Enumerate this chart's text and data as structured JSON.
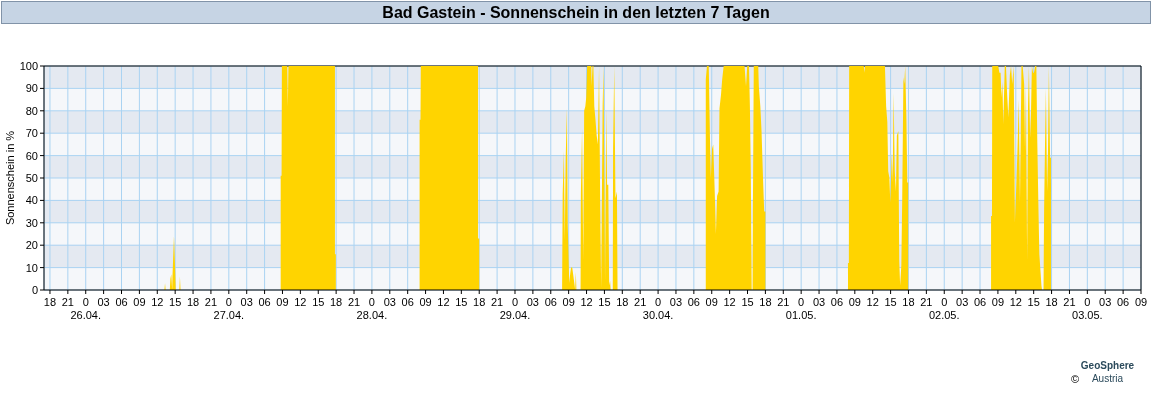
{
  "chart_data": {
    "type": "area",
    "title": "Bad Gastein - Sonnenschein in den letzten 7 Tagen",
    "ylabel": "Sonnenschein in %",
    "annotations": [
      "©",
      "GeoSphere Austria"
    ],
    "color": "#ffd400",
    "x": [
      "--04-26T13:12",
      "--04-26T13:18",
      "--04-26T13:24",
      "--04-26T14:06",
      "--04-26T14:12",
      "--04-26T14:21",
      "--04-26T14:30",
      "--04-26T14:33",
      "--04-26T14:48",
      "--04-26T15:00",
      "--04-26T15:06",
      "--04-26T15:42",
      "--04-26T15:48",
      "--04-26T15:54",
      "--04-27T08:42",
      "--04-27T08:42",
      "--04-27T08:51",
      "--04-27T08:54",
      "--04-27T09:48",
      "--04-27T09:54",
      "--04-27T10:00",
      "--04-27T17:48",
      "--04-27T17:48",
      "--04-27T17:57",
      "--04-27T17:57",
      "--04-28T08:00",
      "--04-28T08:00",
      "--04-28T08:09",
      "--04-28T08:12",
      "--04-28T17:48",
      "--04-28T17:48",
      "--04-28T18:00",
      "--04-28T18:00",
      "--04-29T07:54",
      "--04-29T08:00",
      "--04-29T08:12",
      "--04-29T08:21",
      "--04-29T08:30",
      "--04-29T08:42",
      "--04-29T08:51",
      "--04-29T09:06",
      "--04-29T09:15",
      "--04-29T09:24",
      "--04-29T09:36",
      "--04-29T09:45",
      "--04-29T10:00",
      "--04-29T10:06",
      "--04-29T10:12",
      "--04-29T10:18",
      "--04-29T11:00",
      "--04-29T11:03",
      "--04-29T11:15",
      "--04-29T11:27",
      "--04-29T11:36",
      "--04-29T11:48",
      "--04-29T11:57",
      "--04-29T12:06",
      "--04-29T12:48",
      "--04-29T12:51",
      "--04-29T13:00",
      "--04-29T13:09",
      "--04-29T13:18",
      "--04-29T13:30",
      "--04-29T13:42",
      "--04-29T13:54",
      "--04-29T14:06",
      "--04-29T14:18",
      "--04-29T14:27",
      "--04-29T14:42",
      "--04-29T14:51",
      "--04-29T15:06",
      "--04-29T15:18",
      "--04-29T15:27",
      "--04-29T15:39",
      "--04-29T15:48",
      "--04-29T15:57",
      "--04-29T16:03",
      "--04-29T16:24",
      "--04-29T16:27",
      "--04-29T16:39",
      "--04-29T16:51",
      "--04-29T17:06",
      "--04-29T17:12",
      "--04-30T08:00",
      "--04-30T08:00",
      "--04-30T08:12",
      "--04-30T08:30",
      "--04-30T08:42",
      "--04-30T08:51",
      "--04-30T09:03",
      "--04-30T09:15",
      "--04-30T09:30",
      "--04-30T09:42",
      "--04-30T09:54",
      "--04-30T10:09",
      "--04-30T10:18",
      "--04-30T10:33",
      "--04-30T10:45",
      "--04-30T11:00",
      "--04-30T14:30",
      "--04-30T14:45",
      "--04-30T14:57",
      "--04-30T15:15",
      "--04-30T15:24",
      "--04-30T15:33",
      "--04-30T15:42",
      "--04-30T15:51",
      "--04-30T15:54",
      "--04-30T16:03",
      "--04-30T16:48",
      "--04-30T16:54",
      "--04-30T17:09",
      "--04-30T17:21",
      "--04-30T17:36",
      "--04-30T17:48",
      "--04-30T18:00",
      "--04-30T18:00",
      "--05-01T07:51",
      "--05-01T07:51",
      "--05-01T08:00",
      "--05-01T08:03",
      "--05-01T10:30",
      "--05-01T10:36",
      "--05-01T10:42",
      "--05-01T14:03",
      "--05-01T14:15",
      "--05-01T14:27",
      "--05-01T14:36",
      "--05-01T14:48",
      "--05-01T14:57",
      "--05-01T15:12",
      "--05-01T15:21",
      "--05-01T15:30",
      "--05-01T15:42",
      "--05-01T15:54",
      "--05-01T16:03",
      "--05-01T16:18",
      "--05-01T16:27",
      "--05-01T16:36",
      "--05-01T16:48",
      "--05-01T16:57",
      "--05-01T17:09",
      "--05-01T17:18",
      "--05-01T17:27",
      "--05-01T17:39",
      "--05-01T17:48",
      "--05-01T17:57",
      "--05-01T17:57",
      "--05-02T07:51",
      "--05-02T07:51",
      "--05-02T08:00",
      "--05-02T08:03",
      "--05-02T09:03",
      "--05-02T09:15",
      "--05-02T09:27",
      "--05-02T09:36",
      "--05-02T09:45",
      "--05-02T09:54",
      "--05-02T10:09",
      "--05-02T10:21",
      "--05-02T10:33",
      "--05-02T10:45",
      "--05-02T11:00",
      "--05-02T11:12",
      "--05-02T11:24",
      "--05-02T11:39",
      "--05-02T11:51",
      "--05-02T12:03",
      "--05-02T12:15",
      "--05-02T12:30",
      "--05-02T12:42",
      "--05-02T12:57",
      "--05-02T13:09",
      "--05-02T13:24",
      "--05-02T13:33",
      "--05-02T13:42",
      "--05-02T13:54",
      "--05-02T14:03",
      "--05-02T14:12",
      "--05-02T14:24",
      "--05-02T14:33",
      "--05-02T14:42",
      "--05-02T14:54",
      "--05-02T15:03",
      "--05-02T15:15",
      "--05-02T15:27",
      "--05-02T15:36",
      "--05-02T15:48",
      "--05-02T15:57",
      "--05-02T16:06",
      "--05-02T16:18",
      "--05-02T16:24",
      "--05-02T16:39",
      "--05-02T16:45",
      "--05-02T16:54",
      "--05-02T17:03",
      "--05-02T17:15",
      "--05-02T17:24",
      "--05-02T17:33",
      "--05-02T17:45",
      "--05-02T17:54",
      "--05-02T17:54"
    ],
    "values": [
      0,
      3,
      0,
      0,
      5,
      7,
      0,
      6,
      24,
      9,
      0,
      0,
      6,
      0,
      0,
      51,
      51,
      100,
      100,
      82,
      100,
      100,
      16,
      16,
      0,
      0,
      76,
      76,
      100,
      100,
      23,
      23,
      0,
      0,
      43,
      62,
      22,
      58,
      81,
      29,
      3,
      7,
      10,
      10,
      7,
      2,
      0,
      8,
      0,
      0,
      43,
      72,
      13,
      80,
      82,
      86,
      100,
      100,
      91,
      100,
      100,
      82,
      76,
      69,
      65,
      100,
      36,
      1,
      82,
      100,
      4,
      81,
      47,
      47,
      2,
      4,
      0,
      0,
      63,
      100,
      41,
      44,
      0,
      0,
      94,
      100,
      100,
      68,
      50,
      63,
      65,
      44,
      25,
      42,
      44,
      81,
      87,
      94,
      100,
      100,
      91,
      100,
      100,
      82,
      53,
      0,
      0,
      34,
      100,
      100,
      91,
      82,
      71,
      50,
      35,
      35,
      0,
      0,
      12,
      12,
      100,
      100,
      97,
      100,
      100,
      82,
      75,
      53,
      50,
      39,
      61,
      48,
      88,
      53,
      44,
      69,
      71,
      13,
      2,
      11,
      41,
      95,
      92,
      100,
      76,
      48,
      48,
      0,
      0,
      33,
      33,
      100,
      100,
      97,
      97,
      86,
      93,
      74,
      100,
      100,
      87,
      77,
      96,
      100,
      92,
      100,
      30,
      44,
      60,
      85,
      39,
      100,
      100,
      92,
      62,
      92,
      13,
      82,
      100,
      68,
      79,
      100,
      97,
      97,
      100,
      100,
      67,
      36,
      16,
      10,
      2,
      0,
      0,
      36,
      65,
      90,
      44,
      62,
      100,
      59,
      59,
      0
    ],
    "xlim": [
      "--04-25T17:00",
      "--05-03T09:00"
    ],
    "xticks": [
      {
        "value": "--04-25T18:00",
        "label": "18"
      },
      {
        "value": "--04-25T21:00",
        "label": "21"
      },
      {
        "value": "--04-26T00:00",
        "label": "0\n26.04."
      },
      {
        "value": "--04-26T03:00",
        "label": "03"
      },
      {
        "value": "--04-26T06:00",
        "label": "06"
      },
      {
        "value": "--04-26T09:00",
        "label": "09"
      },
      {
        "value": "--04-26T12:00",
        "label": "12"
      },
      {
        "value": "--04-26T15:00",
        "label": "15"
      },
      {
        "value": "--04-26T18:00",
        "label": "18"
      },
      {
        "value": "--04-26T21:00",
        "label": "21"
      },
      {
        "value": "--04-27T00:00",
        "label": "0\n27.04."
      },
      {
        "value": "--04-27T03:00",
        "label": "03"
      },
      {
        "value": "--04-27T06:00",
        "label": "06"
      },
      {
        "value": "--04-27T09:00",
        "label": "09"
      },
      {
        "value": "--04-27T12:00",
        "label": "12"
      },
      {
        "value": "--04-27T15:00",
        "label": "15"
      },
      {
        "value": "--04-27T18:00",
        "label": "18"
      },
      {
        "value": "--04-27T21:00",
        "label": "21"
      },
      {
        "value": "--04-28T00:00",
        "label": "0\n28.04."
      },
      {
        "value": "--04-28T03:00",
        "label": "03"
      },
      {
        "value": "--04-28T06:00",
        "label": "06"
      },
      {
        "value": "--04-28T09:00",
        "label": "09"
      },
      {
        "value": "--04-28T12:00",
        "label": "12"
      },
      {
        "value": "--04-28T15:00",
        "label": "15"
      },
      {
        "value": "--04-28T18:00",
        "label": "18"
      },
      {
        "value": "--04-28T21:00",
        "label": "21"
      },
      {
        "value": "--04-29T00:00",
        "label": "0\n29.04."
      },
      {
        "value": "--04-29T03:00",
        "label": "03"
      },
      {
        "value": "--04-29T06:00",
        "label": "06"
      },
      {
        "value": "--04-29T09:00",
        "label": "09"
      },
      {
        "value": "--04-29T12:00",
        "label": "12"
      },
      {
        "value": "--04-29T15:00",
        "label": "15"
      },
      {
        "value": "--04-29T18:00",
        "label": "18"
      },
      {
        "value": "--04-29T21:00",
        "label": "21"
      },
      {
        "value": "--04-30T00:00",
        "label": "0\n30.04."
      },
      {
        "value": "--04-30T03:00",
        "label": "03"
      },
      {
        "value": "--04-30T06:00",
        "label": "06"
      },
      {
        "value": "--04-30T09:00",
        "label": "09"
      },
      {
        "value": "--04-30T12:00",
        "label": "12"
      },
      {
        "value": "--04-30T15:00",
        "label": "15"
      },
      {
        "value": "--04-30T18:00",
        "label": "18"
      },
      {
        "value": "--04-30T21:00",
        "label": "21"
      },
      {
        "value": "--05-01T00:00",
        "label": "0\n01.05."
      },
      {
        "value": "--05-01T03:00",
        "label": "03"
      },
      {
        "value": "--05-01T06:00",
        "label": "06"
      },
      {
        "value": "--05-01T09:00",
        "label": "09"
      },
      {
        "value": "--05-01T12:00",
        "label": "12"
      },
      {
        "value": "--05-01T15:00",
        "label": "15"
      },
      {
        "value": "--05-01T18:00",
        "label": "18"
      },
      {
        "value": "--05-01T21:00",
        "label": "21"
      },
      {
        "value": "--05-02T00:00",
        "label": "0\n02.05."
      },
      {
        "value": "--05-02T03:00",
        "label": "03"
      },
      {
        "value": "--05-02T06:00",
        "label": "06"
      },
      {
        "value": "--05-02T09:00",
        "label": "09"
      },
      {
        "value": "--05-02T12:00",
        "label": "12"
      },
      {
        "value": "--05-02T15:00",
        "label": "15"
      },
      {
        "value": "--05-02T18:00",
        "label": "18"
      },
      {
        "value": "--05-02T21:00",
        "label": "21"
      },
      {
        "value": "--05-03T00:00",
        "label": "0\n03.05."
      },
      {
        "value": "--05-03T03:00",
        "label": "03"
      },
      {
        "value": "--05-03T06:00",
        "label": "06"
      },
      {
        "value": "--05-03T09:00",
        "label": "09"
      }
    ],
    "ylim": [
      0,
      100
    ],
    "yticks": [
      0,
      10,
      20,
      30,
      40,
      50,
      60,
      70,
      80,
      90,
      100
    ],
    "grid": true
  }
}
